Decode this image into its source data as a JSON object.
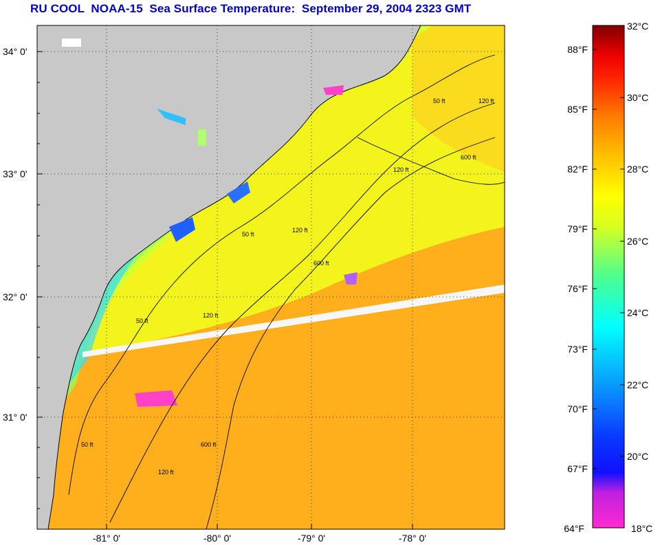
{
  "title": "RU COOL  NOAA-15  Sea Surface Temperature:  September 29, 2004 2323 GMT",
  "map": {
    "lat_labels": [
      "34° 0'",
      "33° 0'",
      "32° 0'",
      "31° 0'"
    ],
    "lon_labels": [
      "-81° 0'",
      "-80° 0'",
      "-79° 0'",
      "-78° 0'"
    ],
    "isobath_labels": [
      "50 ft",
      "50 ft",
      "50 ft",
      "50 ft",
      "120 ft",
      "120 ft",
      "120 ft",
      "120 ft",
      "600 ft",
      "600 ft",
      "600 ft",
      "120 ft"
    ],
    "colors": {
      "land": "#c8c8c8",
      "cold_nearshore": "#44c8ff",
      "mid": "#e6ff30",
      "warm": "#ffae18",
      "swath_gap": "#f5f5f5"
    }
  },
  "colorbar": {
    "fahrenheit_labels": [
      "88°F",
      "85°F",
      "82°F",
      "79°F",
      "76°F",
      "73°F",
      "70°F",
      "67°F",
      "64°F"
    ],
    "celsius_labels": [
      "32°C",
      "30°C",
      "28°C",
      "26°C",
      "24°C",
      "22°C",
      "20°C",
      "18°C"
    ],
    "range_celsius": [
      18,
      32
    ],
    "range_fahrenheit": [
      64,
      89.6
    ]
  }
}
